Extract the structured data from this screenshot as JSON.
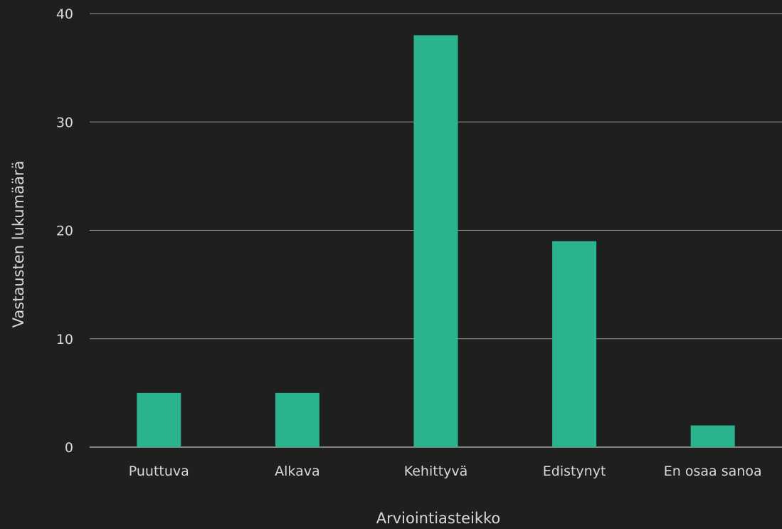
{
  "chart_data": {
    "type": "bar",
    "categories": [
      "Puuttuva",
      "Alkava",
      "Kehittyvä",
      "Edistynyt",
      "En osaa sanoa"
    ],
    "values": [
      5,
      5,
      38,
      19,
      2
    ],
    "title": "",
    "xlabel": "Arviointiasteikko",
    "ylabel": "Vastausten lukumäärä",
    "ylim": [
      0,
      40
    ],
    "yticks": [
      0,
      10,
      20,
      30,
      40
    ],
    "grid": true,
    "bar_color": "#2bb38e",
    "background_color": "#1f1f1f"
  }
}
